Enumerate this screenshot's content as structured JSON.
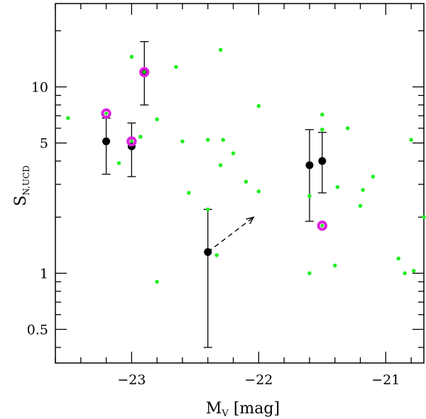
{
  "chart_data": {
    "type": "scatter",
    "title": "",
    "xlabel_main": "M",
    "xlabel_sub": "V",
    "xlabel_unit": " [mag]",
    "ylabel_main": "S",
    "ylabel_sub": "N,UCD",
    "xlim": [
      -23.6,
      -20.7
    ],
    "ylim_log": [
      0.33,
      28
    ],
    "x_ticks": [
      {
        "value": -23,
        "label": "−23"
      },
      {
        "value": -22,
        "label": "−22"
      },
      {
        "value": -21,
        "label": "−21"
      }
    ],
    "y_ticks": [
      {
        "value": 0.5,
        "label": "0.5"
      },
      {
        "value": 1,
        "label": "1"
      },
      {
        "value": 5,
        "label": "5"
      },
      {
        "value": 10,
        "label": "10"
      }
    ],
    "y_minor_ticks": [
      0.4,
      0.6,
      0.7,
      0.8,
      0.9,
      2,
      3,
      4,
      6,
      7,
      8,
      9,
      20
    ],
    "x_minor_step": 0.2,
    "colors": {
      "green": "#22ee22",
      "magenta": "#dd22dd",
      "black": "#000000"
    },
    "series": [
      {
        "name": "green dots",
        "marker": "small green circle",
        "points": [
          {
            "x": -23.5,
            "y": 6.8
          },
          {
            "x": -23.1,
            "y": 3.9
          },
          {
            "x": -23.0,
            "y": 14.5
          },
          {
            "x": -22.93,
            "y": 5.4
          },
          {
            "x": -22.8,
            "y": 6.7
          },
          {
            "x": -22.8,
            "y": 0.9
          },
          {
            "x": -22.65,
            "y": 12.8
          },
          {
            "x": -22.6,
            "y": 5.1
          },
          {
            "x": -22.55,
            "y": 2.7
          },
          {
            "x": -22.4,
            "y": 5.2
          },
          {
            "x": -22.4,
            "y": 2.2
          },
          {
            "x": -22.33,
            "y": 1.25
          },
          {
            "x": -22.3,
            "y": 15.8
          },
          {
            "x": -22.3,
            "y": 3.8
          },
          {
            "x": -22.28,
            "y": 5.2
          },
          {
            "x": -22.2,
            "y": 4.4
          },
          {
            "x": -22.1,
            "y": 3.1
          },
          {
            "x": -22.0,
            "y": 7.9
          },
          {
            "x": -22.0,
            "y": 2.75
          },
          {
            "x": -21.6,
            "y": 2.6
          },
          {
            "x": -21.6,
            "y": 1.0
          },
          {
            "x": -21.5,
            "y": 7.1
          },
          {
            "x": -21.5,
            "y": 5.9
          },
          {
            "x": -21.4,
            "y": 1.1
          },
          {
            "x": -21.38,
            "y": 2.9
          },
          {
            "x": -21.3,
            "y": 6.0
          },
          {
            "x": -21.2,
            "y": 2.3
          },
          {
            "x": -21.18,
            "y": 2.8
          },
          {
            "x": -21.1,
            "y": 3.3
          },
          {
            "x": -20.9,
            "y": 1.2
          },
          {
            "x": -20.85,
            "y": 1.0
          },
          {
            "x": -20.8,
            "y": 5.2
          },
          {
            "x": -20.78,
            "y": 1.03
          },
          {
            "x": -20.7,
            "y": 2.0
          }
        ]
      },
      {
        "name": "magenta rings",
        "marker": "magenta ring with green center",
        "points": [
          {
            "x": -23.2,
            "y": 7.2
          },
          {
            "x": -23.0,
            "y": 5.1
          },
          {
            "x": -22.9,
            "y": 12.0
          },
          {
            "x": -21.5,
            "y": 1.8
          }
        ]
      },
      {
        "name": "black points with error bars",
        "marker": "filled black circle",
        "points": [
          {
            "x": -23.2,
            "y": 5.1,
            "ylow": 3.4,
            "yhigh": 6.8
          },
          {
            "x": -23.0,
            "y": 4.8,
            "ylow": 3.3,
            "yhigh": 6.4
          },
          {
            "x": -22.9,
            "y": 12.0,
            "ylow": 8.0,
            "yhigh": 17.5
          },
          {
            "x": -22.4,
            "y": 1.3,
            "ylow": 0.4,
            "yhigh": 2.2
          },
          {
            "x": -21.6,
            "y": 3.8,
            "ylow": 1.9,
            "yhigh": 5.9
          },
          {
            "x": -21.5,
            "y": 4.0,
            "ylow": 2.7,
            "yhigh": 5.7
          }
        ]
      }
    ],
    "annotations": [
      {
        "type": "dashed-arrow",
        "from": {
          "x": -22.4,
          "y": 1.3
        },
        "to": {
          "x": -22.04,
          "y": 2.0
        }
      }
    ]
  }
}
